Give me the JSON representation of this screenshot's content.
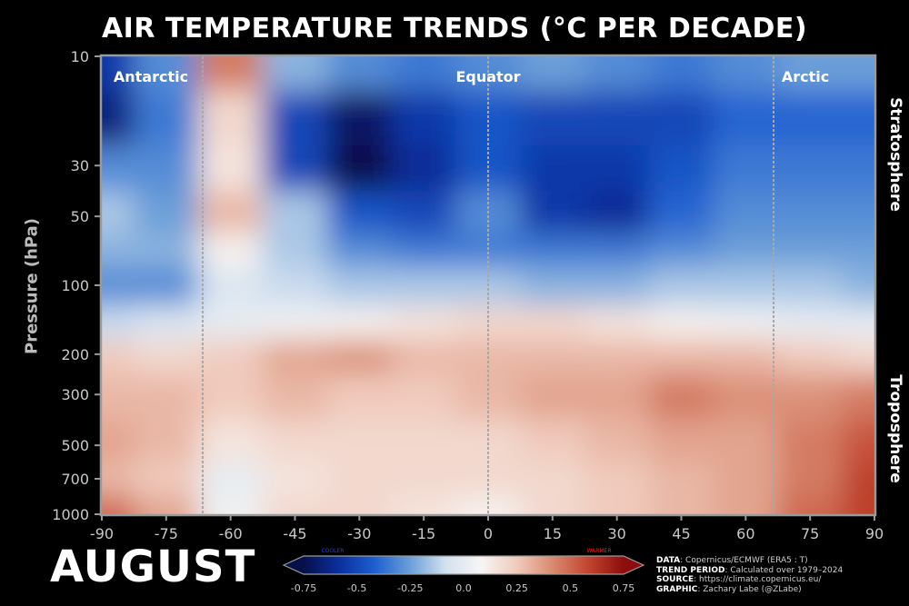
{
  "title": "AIR TEMPERATURE TRENDS (°C PER DECADE)",
  "month": "AUGUST",
  "side_labels": {
    "top": "Stratosphere",
    "bottom": "Troposphere"
  },
  "colorbar": {
    "ticks": [
      -0.75,
      -0.5,
      -0.25,
      0.0,
      0.25,
      0.5,
      0.75
    ],
    "tick_labels": [
      "-0.75",
      "-0.5",
      "-0.25",
      "0.0",
      "0.25",
      "0.5",
      "0.75"
    ],
    "left_label": "COOLER",
    "right_label": "WARMER",
    "range": [
      -0.75,
      0.75
    ],
    "colors": [
      "#08104a",
      "#0a2f9e",
      "#1d5fd0",
      "#6c9fd8",
      "#d4e2f0",
      "#f7f5f3",
      "#f0cbbd",
      "#d98a70",
      "#c2452f",
      "#8c0d0d"
    ]
  },
  "credits": [
    {
      "key": "DATA",
      "text": ": Copernicus/ECMWF (ERA5 : T)"
    },
    {
      "key": "TREND PERIOD",
      "text": ": Calculated over 1979–2024"
    },
    {
      "key": "SOURCE",
      "text": ": https://climate.copernicus.eu/"
    },
    {
      "key": "GRAPHIC",
      "text": ": Zachary Labe (@ZLabe)"
    }
  ],
  "chart_data": {
    "type": "heatmap",
    "title": "AIR TEMPERATURE TRENDS (°C PER DECADE)",
    "xlabel": "",
    "ylabel": "Pressure (hPa)",
    "xlim": [
      -90,
      90
    ],
    "ylim": [
      1000,
      10
    ],
    "y_scale": "log",
    "x_ticks": [
      -90,
      -75,
      -60,
      -45,
      -30,
      -15,
      0,
      15,
      30,
      45,
      60,
      75,
      90
    ],
    "y_ticks": [
      10,
      30,
      50,
      100,
      200,
      300,
      500,
      700,
      1000
    ],
    "reference_lines": [
      {
        "lat": -66.5,
        "label": "Antarctic"
      },
      {
        "lat": 0,
        "label": "Equator"
      },
      {
        "lat": 66.5,
        "label": "Arctic"
      }
    ],
    "trend_period": "1979–2024",
    "lat": [
      -90,
      -75,
      -60,
      -45,
      -30,
      -15,
      0,
      15,
      30,
      45,
      60,
      75,
      90
    ],
    "pressure": [
      10,
      20,
      30,
      50,
      70,
      100,
      150,
      200,
      300,
      500,
      700,
      1000
    ],
    "values": [
      [
        -0.55,
        -0.3,
        0.45,
        -0.2,
        -0.3,
        -0.35,
        -0.3,
        -0.25,
        -0.3,
        -0.35,
        -0.3,
        -0.25,
        -0.25
      ],
      [
        -0.65,
        -0.35,
        0.2,
        -0.5,
        -0.7,
        -0.55,
        -0.45,
        -0.5,
        -0.5,
        -0.5,
        -0.4,
        -0.4,
        -0.4
      ],
      [
        -0.3,
        -0.3,
        0.15,
        -0.5,
        -0.75,
        -0.6,
        -0.45,
        -0.55,
        -0.55,
        -0.45,
        -0.35,
        -0.35,
        -0.35
      ],
      [
        -0.15,
        -0.25,
        0.3,
        -0.15,
        -0.45,
        -0.5,
        -0.3,
        -0.55,
        -0.6,
        -0.4,
        -0.3,
        -0.3,
        -0.3
      ],
      [
        -0.2,
        -0.2,
        0.1,
        -0.15,
        -0.3,
        -0.35,
        -0.35,
        -0.35,
        -0.35,
        -0.3,
        -0.25,
        -0.25,
        -0.25
      ],
      [
        -0.3,
        -0.3,
        -0.05,
        -0.1,
        -0.15,
        -0.15,
        -0.15,
        -0.2,
        -0.2,
        -0.15,
        -0.15,
        -0.15,
        -0.2
      ],
      [
        -0.1,
        -0.05,
        0.0,
        0.05,
        0.1,
        0.15,
        0.2,
        0.2,
        0.15,
        0.1,
        0.05,
        0.0,
        0.0
      ],
      [
        0.25,
        0.2,
        0.25,
        0.35,
        0.4,
        0.3,
        0.3,
        0.3,
        0.3,
        0.3,
        0.3,
        0.25,
        0.2
      ],
      [
        0.3,
        0.3,
        0.25,
        0.3,
        0.25,
        0.25,
        0.3,
        0.35,
        0.35,
        0.45,
        0.4,
        0.4,
        0.45
      ],
      [
        0.35,
        0.3,
        0.15,
        0.2,
        0.2,
        0.2,
        0.2,
        0.25,
        0.3,
        0.35,
        0.35,
        0.45,
        0.55
      ],
      [
        0.3,
        0.25,
        0.0,
        0.15,
        0.2,
        0.2,
        0.2,
        0.2,
        0.25,
        0.3,
        0.35,
        0.45,
        0.6
      ],
      [
        0.5,
        0.35,
        0.05,
        0.2,
        0.2,
        0.15,
        0.1,
        0.2,
        0.25,
        0.3,
        0.35,
        0.5,
        0.6
      ]
    ]
  }
}
